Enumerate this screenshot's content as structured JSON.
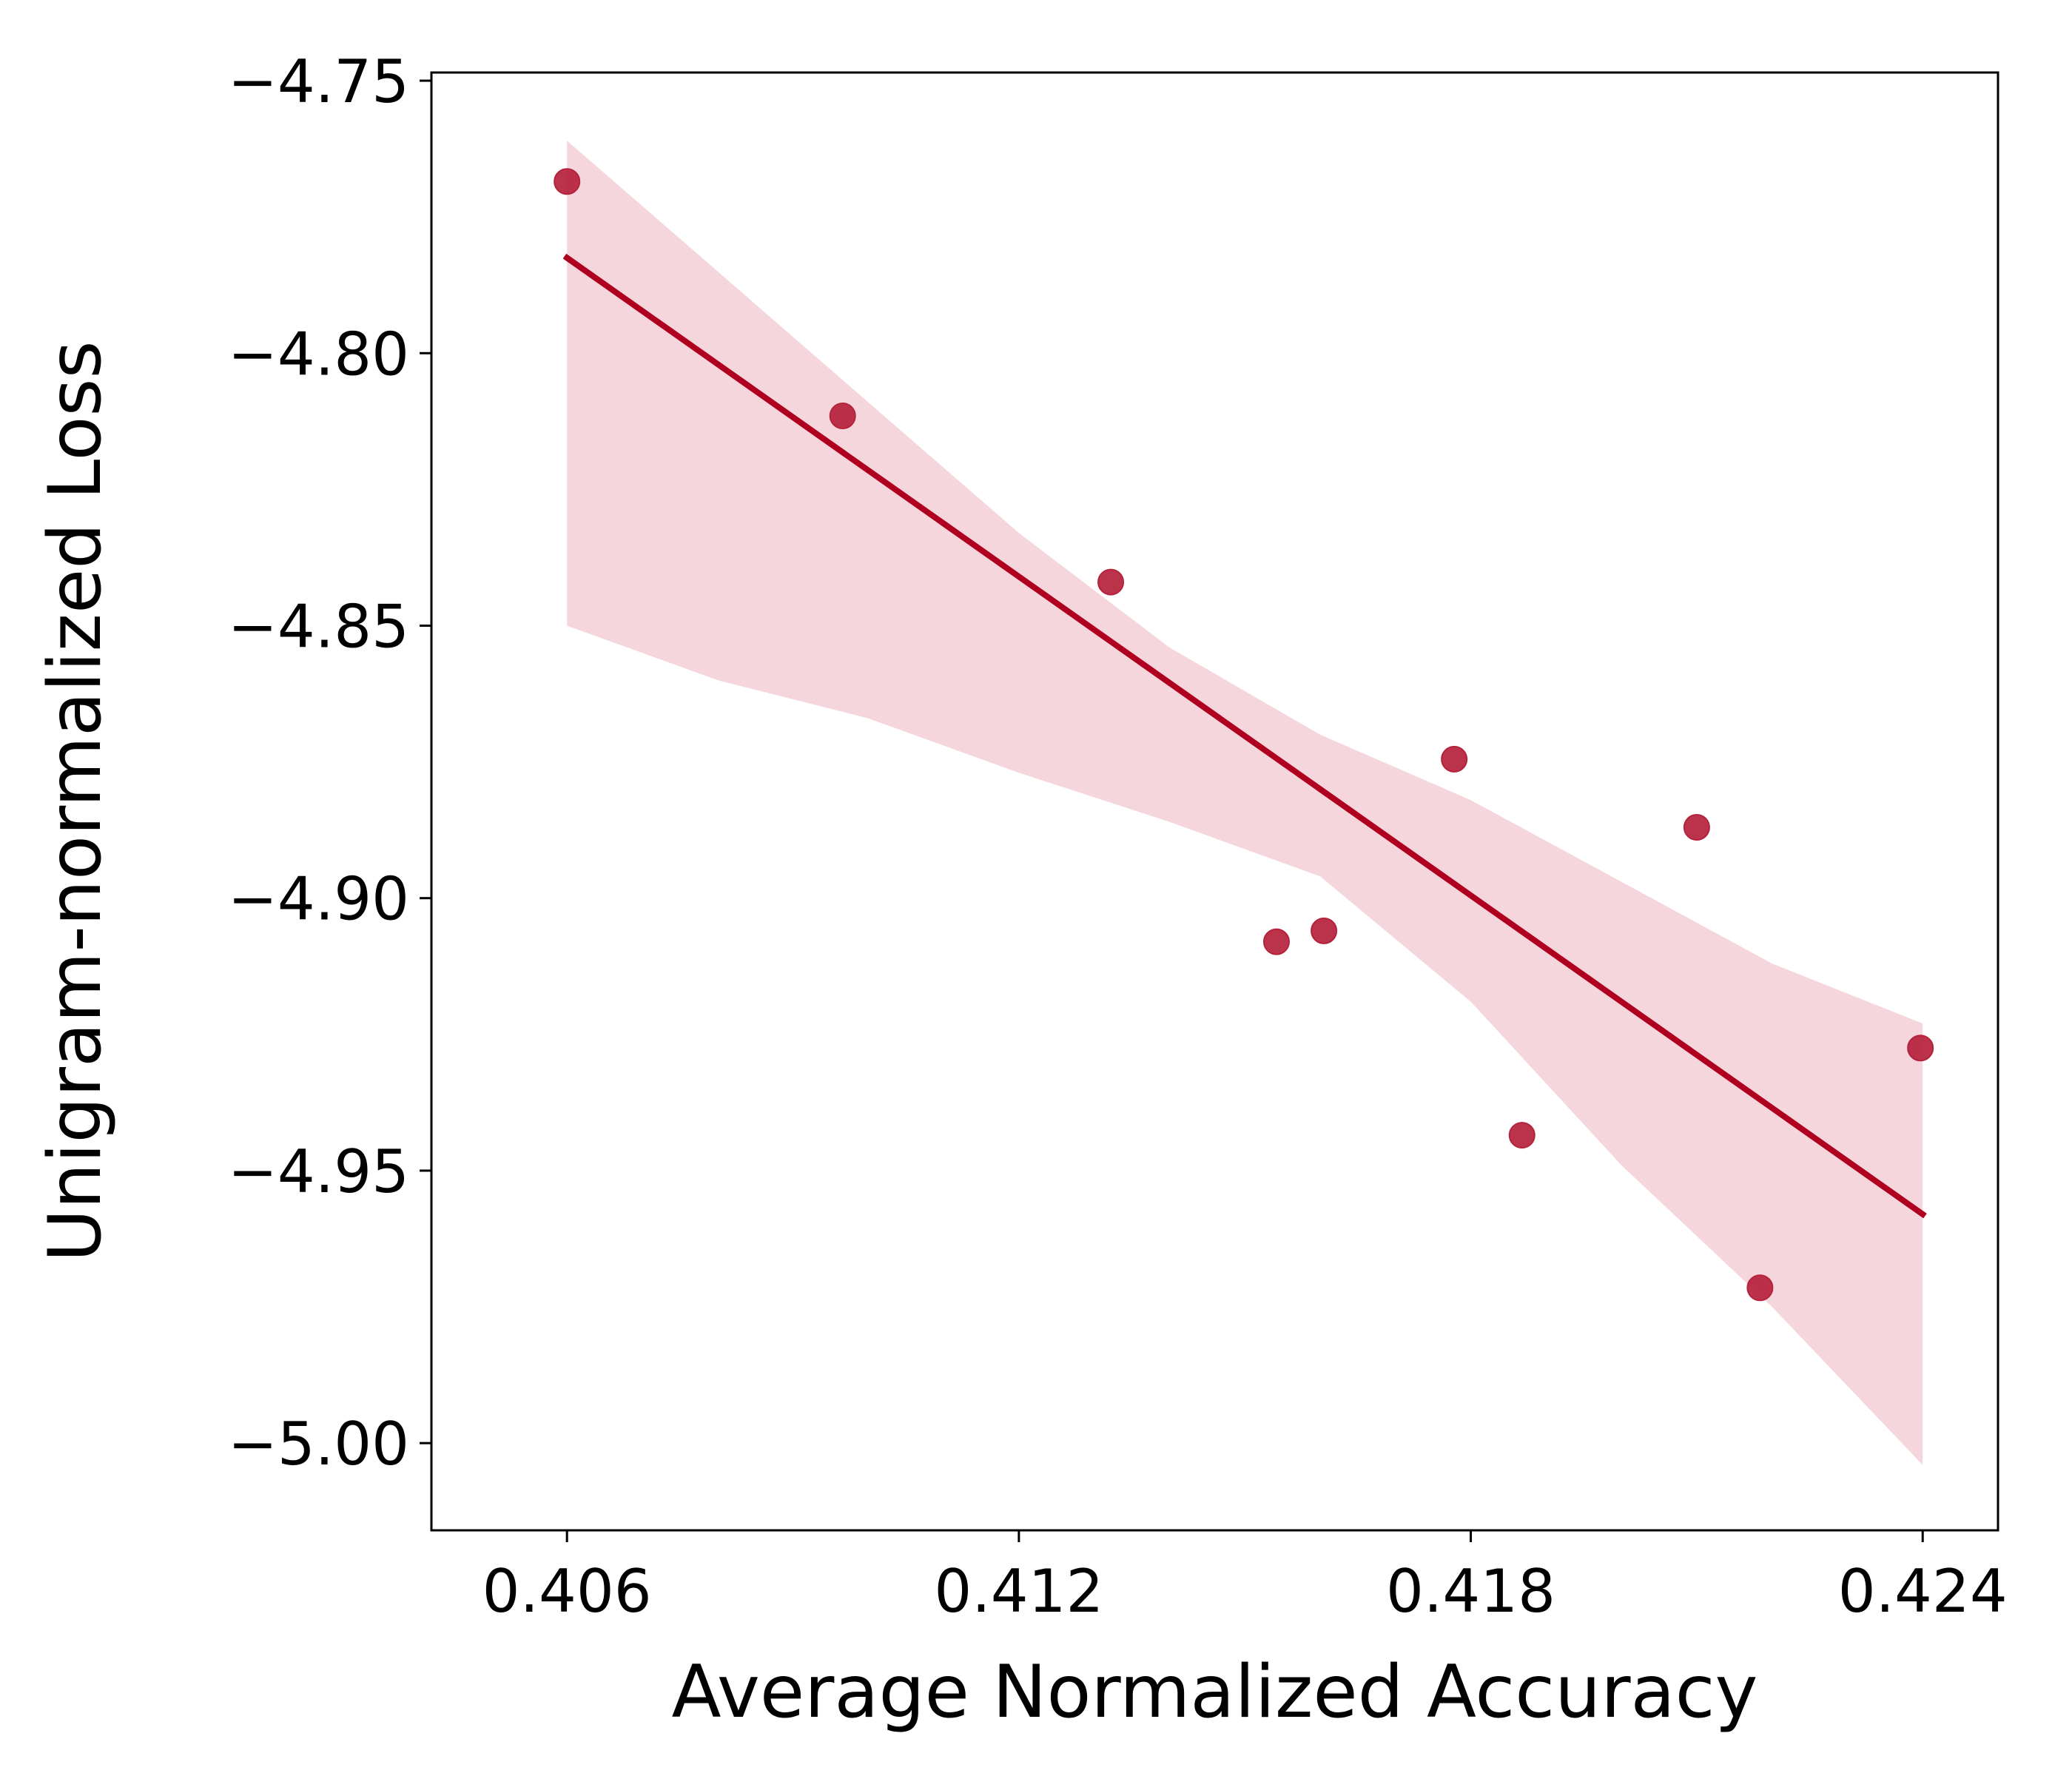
{
  "chart_data": {
    "type": "scatter",
    "title": "",
    "xlabel": "Average Normalized Accuracy",
    "ylabel": "Unigram-normalized Loss",
    "xlim": [
      0.4042,
      0.425
    ],
    "ylim": [
      -5.016,
      -4.7485
    ],
    "x_ticks": [
      0.406,
      0.412,
      0.418,
      0.424
    ],
    "x_tick_labels": [
      "0.406",
      "0.412",
      "0.418",
      "0.424"
    ],
    "y_ticks": [
      -4.75,
      -4.8,
      -4.85,
      -4.9,
      -4.95,
      -5.0
    ],
    "y_tick_labels": [
      "−4.75",
      "−4.80",
      "−4.85",
      "−4.90",
      "−4.95",
      "−5.00"
    ],
    "grid": false,
    "legend": null,
    "series": [
      {
        "kind": "points",
        "x": [
          0.406,
          0.40966,
          0.41322,
          0.41542,
          0.41605,
          0.41778,
          0.41868,
          0.421,
          0.42184,
          0.42397
        ],
        "y": [
          -4.7685,
          -4.8115,
          -4.842,
          -4.908,
          -4.906,
          -4.8745,
          -4.9435,
          -4.887,
          -4.9715,
          -4.9275
        ]
      },
      {
        "kind": "regression-line",
        "x": [
          0.406,
          0.424
        ],
        "y": [
          -4.7825,
          -4.958
        ]
      },
      {
        "kind": "confidence-band",
        "x": [
          0.406,
          0.408,
          0.41,
          0.412,
          0.414,
          0.416,
          0.418,
          0.42,
          0.422,
          0.424
        ],
        "upper": [
          -4.761,
          -4.785,
          -4.809,
          -4.833,
          -4.854,
          -4.87,
          -4.882,
          -4.897,
          -4.912,
          -4.923
        ],
        "lower": [
          -4.85,
          -4.86,
          -4.867,
          -4.877,
          -4.886,
          -4.896,
          -4.919,
          -4.949,
          -4.975,
          -5.004
        ]
      }
    ],
    "colors": {
      "points": "#b5223b",
      "line": "#b0001f",
      "band": "#f4d6dc",
      "axes": "#000000"
    }
  }
}
